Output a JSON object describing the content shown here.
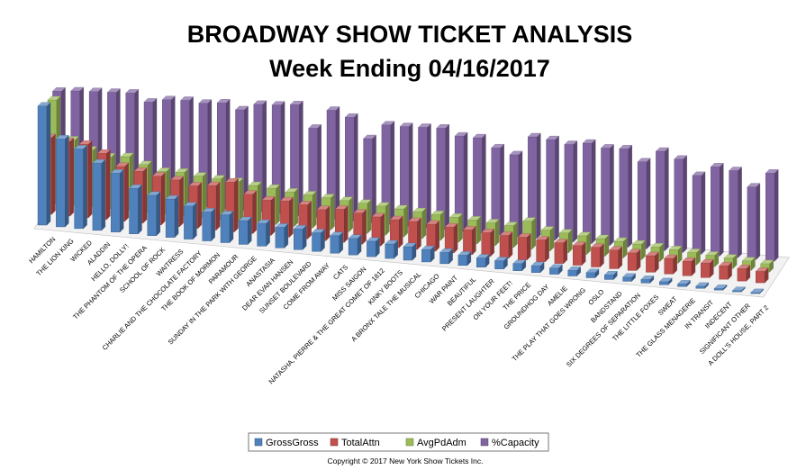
{
  "chart_data": {
    "type": "bar",
    "title": "BROADWAY SHOW TICKET ANALYSIS",
    "subtitle": "Week Ending 04/16/2017",
    "categories": [
      "HAMILTON",
      "THE LION KING",
      "WICKED",
      "ALADDIN",
      "HELLO, DOLLY!",
      "THE PHANTOM OF THE OPERA",
      "SCHOOL OF ROCK",
      "WAITRESS",
      "CHARLIE AND THE CHOCOLATE FACTORY",
      "THE BOOK OF MORMON",
      "PARAMOUR",
      "SUNDAY IN THE PARK WITH GEORGE",
      "ANASTASIA",
      "DEAR EVAN HANSEN",
      "SUNSET BOULEVARD",
      "COME FROM AWAY",
      "CATS",
      "MISS SAIGON",
      "NATASHA, PIERRE & THE GREAT COMET OF 1812",
      "KINKY BOOTS",
      "A BRONX TALE THE MUSICAL",
      "CHICAGO",
      "WAR PAINT",
      "BEAUTIFUL",
      "PRESENT LAUGHTER",
      "ON YOUR FEET!",
      "THE PRICE",
      "GROUNDHOG DAY",
      "AMELIE",
      "THE PLAY THAT GOES WRONG",
      "OSLO",
      "BANDSTAND",
      "SIX DEGREES OF SEPARATION",
      "THE LITTLE FOXES",
      "SWEAT",
      "THE GLASS MENAGERIE",
      "IN TRANSIT",
      "INDECENT",
      "SIGNIFICANT OTHER",
      "A DOLL'S HOUSE, PART 2"
    ],
    "series": [
      {
        "name": "GrossGross",
        "color": "#4f81bd",
        "values": [
          115,
          85,
          77,
          65,
          57,
          44,
          39,
          37,
          32,
          28,
          27,
          23,
          22,
          20,
          20,
          18,
          17,
          16,
          15,
          14,
          13,
          12,
          11,
          10,
          9,
          8,
          7,
          6.5,
          6,
          5.5,
          5,
          4.5,
          4,
          3.5,
          3,
          2.5,
          2,
          1.5,
          1.2,
          1
        ]
      },
      {
        "name": "TotalAttn",
        "color": "#c0504d",
        "values": [
          74,
          72,
          71,
          64,
          53,
          50,
          47,
          45,
          41,
          43,
          48,
          38,
          34,
          35,
          33,
          30,
          32,
          30,
          28,
          27,
          27,
          26,
          25,
          24,
          23,
          22,
          22,
          21,
          20,
          19,
          19,
          18,
          17,
          16,
          15,
          14,
          14,
          13,
          12,
          11
        ]
      },
      {
        "name": "AvgPdAdm",
        "color": "#9bbb59",
        "values": [
          100,
          63,
          55,
          50,
          52,
          46,
          41,
          42,
          40,
          39,
          38,
          36,
          35,
          33,
          32,
          31,
          30,
          29,
          28,
          27,
          26,
          25,
          24,
          23,
          22,
          21,
          27,
          20,
          19,
          18,
          17,
          16,
          15,
          14,
          13,
          12,
          11,
          10,
          9,
          8
        ]
      },
      {
        "name": "%Capacity",
        "color": "#8064a2",
        "values": [
          98,
          100,
          101,
          102,
          103,
          96,
          100,
          101,
          100,
          102,
          97,
          104,
          105,
          107,
          86,
          105,
          100,
          81,
          96,
          96,
          97,
          98,
          92,
          92,
          84,
          79,
          98,
          97,
          94,
          97,
          94,
          95,
          84,
          96,
          90,
          76,
          86,
          84,
          70,
          85
        ]
      }
    ],
    "ylim": [
      0,
      130
    ],
    "legend_position": "bottom",
    "copyright": "Copyright © 2017 New York Show Tickets Inc."
  }
}
